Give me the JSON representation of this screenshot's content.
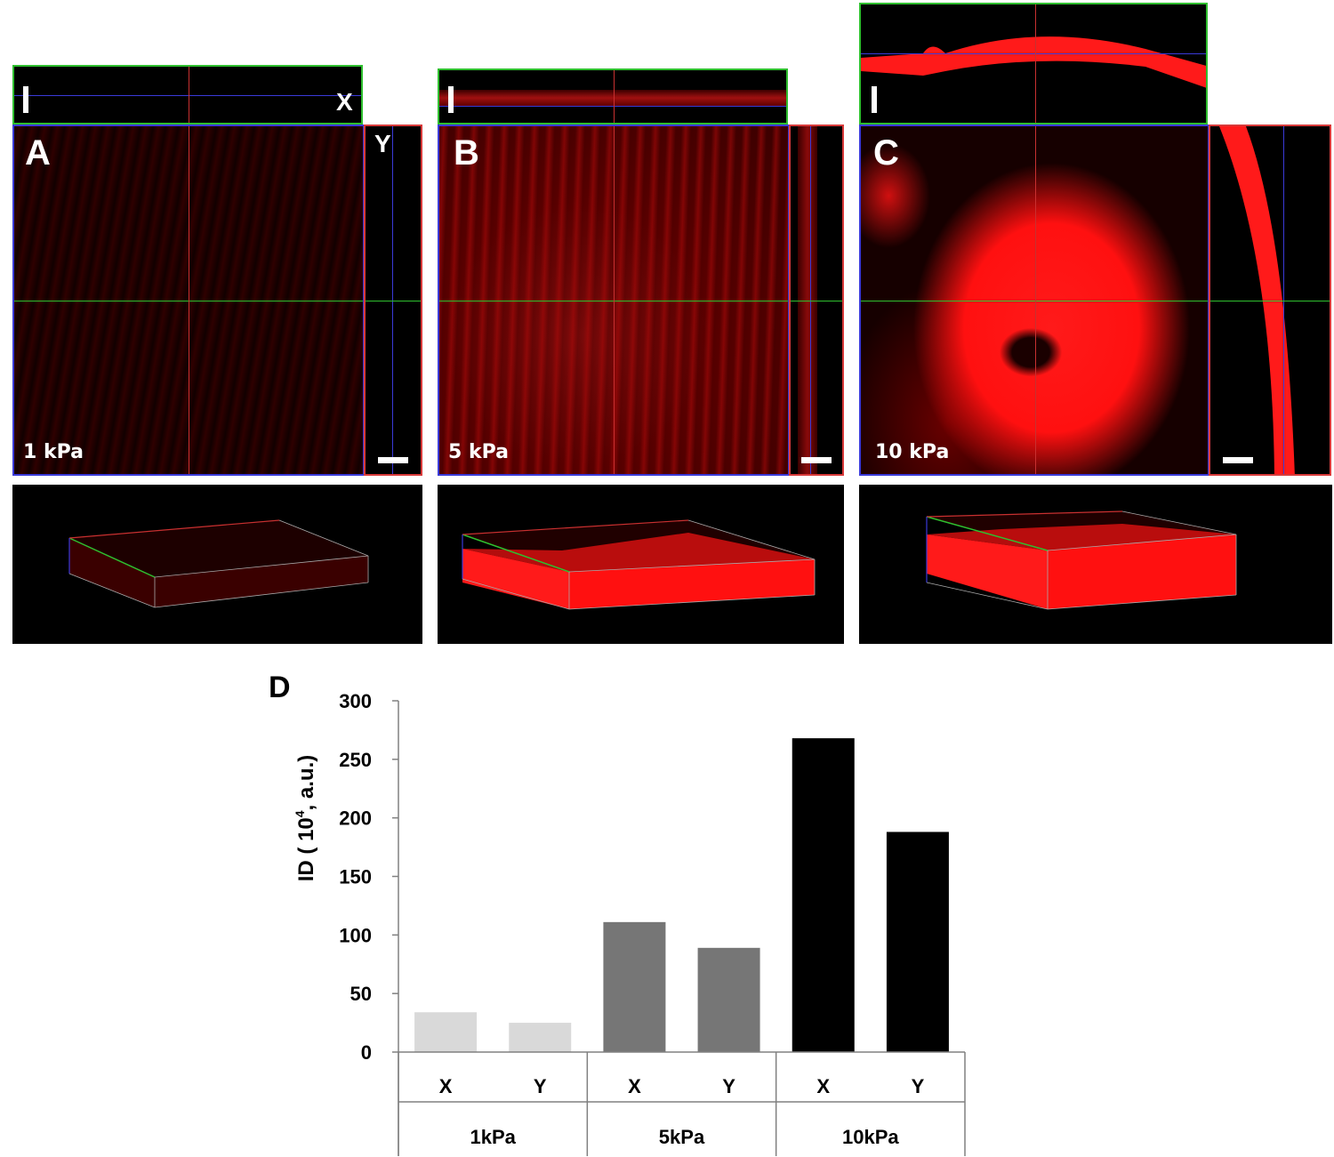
{
  "panels": [
    {
      "letter": "A",
      "pressure": "1 kPa",
      "xz_marker": "I",
      "x_label": "X",
      "y_label": "Y"
    },
    {
      "letter": "B",
      "pressure": "5 kPa",
      "xz_marker": "I"
    },
    {
      "letter": "C",
      "pressure": "10 kPa",
      "xz_marker": "I"
    }
  ],
  "chart_data": {
    "type": "bar",
    "panel_label": "D",
    "groups": [
      "1kPa",
      "5kPa",
      "10kPa"
    ],
    "categories": [
      "X",
      "Y",
      "X",
      "Y",
      "X",
      "Y"
    ],
    "values": [
      34,
      25,
      111,
      89,
      268,
      188
    ],
    "colors": [
      "#d9d9d9",
      "#d9d9d9",
      "#767676",
      "#767676",
      "#000000",
      "#000000"
    ],
    "ylabel": "ID ( 10",
    "ylabel_sup": "4",
    "ylabel_tail": ", a.u.)",
    "ylim": [
      0,
      300
    ],
    "yticks": [
      0,
      50,
      100,
      150,
      200,
      250,
      300
    ],
    "grid": false,
    "legend": "none"
  }
}
